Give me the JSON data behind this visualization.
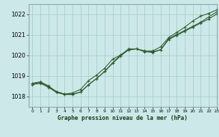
{
  "title": "Graphe pression niveau de la mer (hPa)",
  "background_color": "#cde8e8",
  "grid_color": "#9fc8c8",
  "line_color": "#2d5a2d",
  "xlim": [
    -0.5,
    23
  ],
  "ylim": [
    1017.5,
    1022.5
  ],
  "yticks": [
    1018,
    1019,
    1020,
    1021,
    1022
  ],
  "xticks": [
    0,
    1,
    2,
    3,
    4,
    5,
    6,
    7,
    8,
    9,
    10,
    11,
    12,
    13,
    14,
    15,
    16,
    17,
    18,
    19,
    20,
    21,
    22,
    23
  ],
  "series1_x": [
    0,
    1,
    2,
    3,
    4,
    5,
    6,
    7,
    8,
    9,
    10,
    11,
    12,
    13,
    14,
    15,
    16,
    17,
    18,
    19,
    20,
    21,
    22,
    23
  ],
  "series1_y": [
    1018.65,
    1018.72,
    1018.52,
    1018.22,
    1018.12,
    1018.18,
    1018.35,
    1018.78,
    1019.05,
    1019.38,
    1019.82,
    1020.02,
    1020.28,
    1020.32,
    1020.22,
    1020.18,
    1020.28,
    1020.82,
    1021.02,
    1021.22,
    1021.42,
    1021.62,
    1021.88,
    1022.12
  ],
  "series2_x": [
    0,
    1,
    2,
    3,
    4,
    5,
    6,
    7,
    8,
    9,
    10,
    11,
    12,
    13,
    14,
    15,
    16,
    17,
    18,
    19,
    20,
    21,
    22,
    23
  ],
  "series2_y": [
    1018.62,
    1018.68,
    1018.48,
    1018.25,
    1018.12,
    1018.12,
    1018.22,
    1018.58,
    1018.88,
    1019.22,
    1019.62,
    1019.98,
    1020.28,
    1020.32,
    1020.18,
    1020.15,
    1020.28,
    1020.78,
    1020.98,
    1021.18,
    1021.38,
    1021.58,
    1021.78,
    1022.02
  ],
  "series3_x": [
    0,
    1,
    2,
    3,
    4,
    5,
    6,
    7,
    8,
    9,
    10,
    11,
    12,
    13,
    14,
    15,
    16,
    17,
    18,
    19,
    20,
    21,
    22,
    23
  ],
  "series3_y": [
    1018.58,
    1018.65,
    1018.45,
    1018.2,
    1018.1,
    1018.1,
    1018.22,
    1018.58,
    1018.88,
    1019.22,
    1019.65,
    1020.02,
    1020.32,
    1020.32,
    1020.22,
    1020.22,
    1020.42,
    1020.88,
    1021.12,
    1021.38,
    1021.68,
    1021.92,
    1022.05,
    1022.22
  ]
}
